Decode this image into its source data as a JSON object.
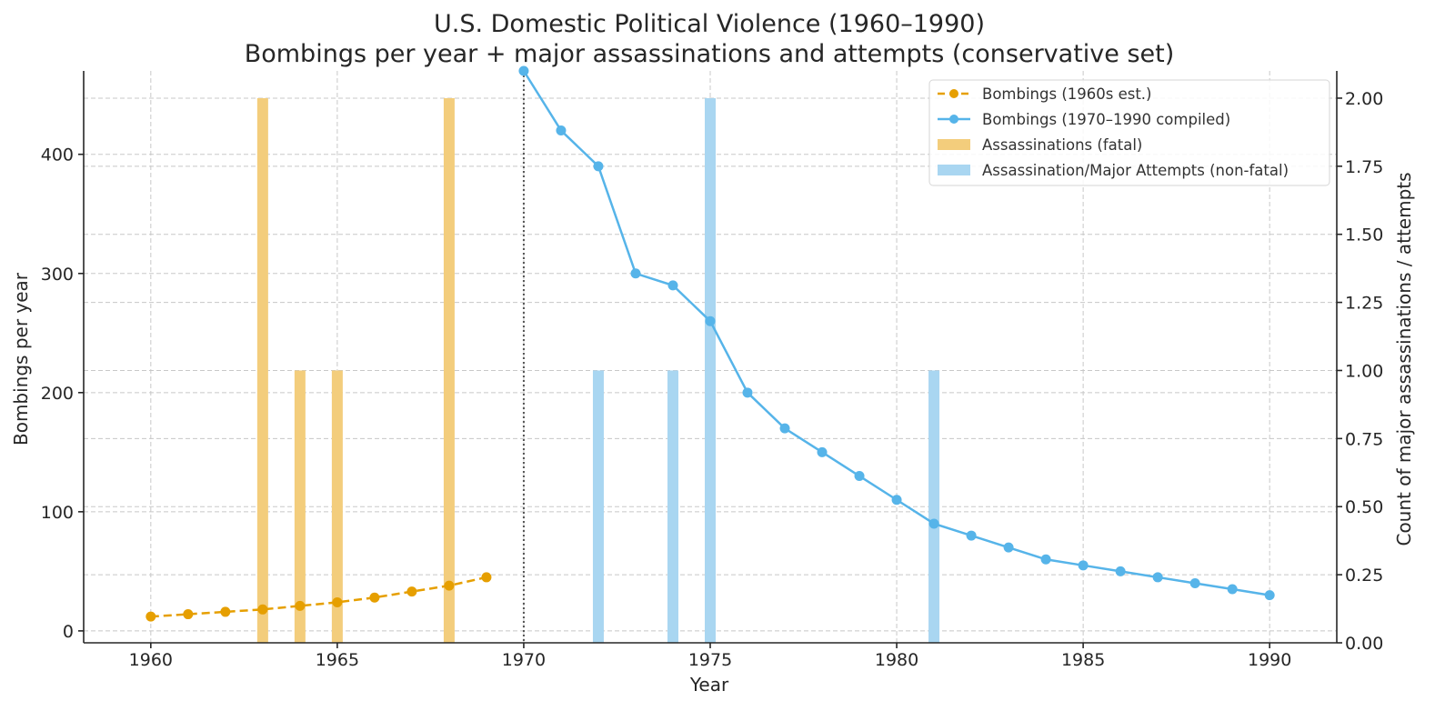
{
  "chart_data": {
    "type": "bar+line",
    "title": "U.S. Domestic Political Violence (1960–1990)",
    "subtitle": "Bombings per year + major assassinations and attempts (conservative set)",
    "xlabel": "Year",
    "ylabel": "Bombings per year",
    "y2label": "Count of major assassinations / attempts",
    "xlim": [
      1958.2,
      1991.8
    ],
    "ylim": [
      -10,
      470
    ],
    "y2lim": [
      0,
      2.1
    ],
    "xticks": [
      1960,
      1965,
      1970,
      1975,
      1980,
      1985,
      1990
    ],
    "yticks": [
      0,
      100,
      200,
      300,
      400
    ],
    "y2ticks": [
      "0.00",
      "0.25",
      "0.50",
      "0.75",
      "1.00",
      "1.25",
      "1.50",
      "1.75",
      "2.00"
    ],
    "grid": true,
    "vline_x": 1970,
    "legend_position": "top-right",
    "series": [
      {
        "name": "Bombings (1960s est.)",
        "type": "line",
        "style": "dashed",
        "axis": "left",
        "color": "#E69F00",
        "x": [
          1960,
          1961,
          1962,
          1963,
          1964,
          1965,
          1966,
          1967,
          1968,
          1969
        ],
        "values": [
          12,
          14,
          16,
          18,
          21,
          24,
          28,
          33,
          38,
          45
        ]
      },
      {
        "name": "Bombings (1970–1990 compiled)",
        "type": "line",
        "style": "solid",
        "axis": "left",
        "color": "#56B4E9",
        "x": [
          1970,
          1971,
          1972,
          1973,
          1974,
          1975,
          1976,
          1977,
          1978,
          1979,
          1980,
          1981,
          1982,
          1983,
          1984,
          1985,
          1986,
          1987,
          1988,
          1989,
          1990
        ],
        "values": [
          470,
          420,
          390,
          300,
          290,
          260,
          200,
          170,
          150,
          130,
          110,
          90,
          80,
          70,
          60,
          55,
          50,
          45,
          40,
          35,
          30
        ]
      },
      {
        "name": "Assassinations (fatal)",
        "type": "bar",
        "axis": "right",
        "color": "#F3CD7C",
        "x": [
          1963,
          1964,
          1965,
          1968
        ],
        "values": [
          2,
          1,
          1,
          2
        ]
      },
      {
        "name": "Assassination/Major Attempts (non-fatal)",
        "type": "bar",
        "axis": "right",
        "color": "#A9D6F1",
        "x": [
          1972,
          1974,
          1975,
          1981
        ],
        "values": [
          1,
          1,
          2,
          1
        ]
      }
    ]
  }
}
